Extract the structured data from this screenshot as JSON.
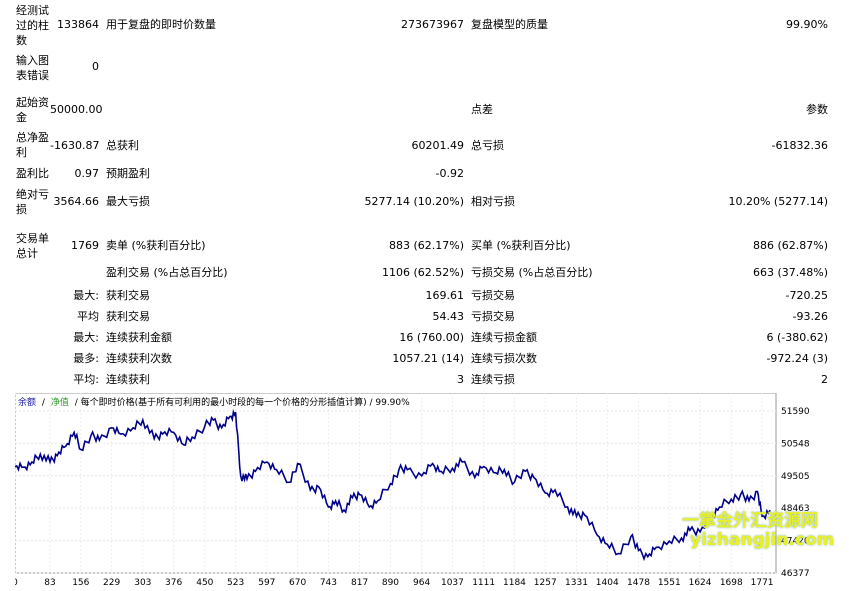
{
  "report": {
    "row1": {
      "label": "经测试过的柱数",
      "value": "133864",
      "label2": "用于复盘的即时价数量",
      "value2": "273673967",
      "label3": "复盘模型的质量",
      "value3": "99.90%"
    },
    "row2": {
      "label": "输入图表错误",
      "value": "0"
    },
    "row3": {
      "label": "起始资金",
      "value": "50000.00",
      "label2": "点差",
      "value2": "参数"
    },
    "row4": {
      "label": "总净盈利",
      "value": "-1630.87",
      "label2": "总获利",
      "value2": "60201.49",
      "label3": "总亏损",
      "value3": "-61832.36"
    },
    "row5": {
      "label": "盈利比",
      "value": "0.97",
      "label2": "预期盈利",
      "value2": "-0.92"
    },
    "row6": {
      "label": "绝对亏损",
      "value": "3564.66",
      "label2": "最大亏损",
      "value2": "5277.14 (10.20%)",
      "label3": "相对亏损",
      "value3": "10.20% (5277.14)"
    },
    "row7": {
      "label": "交易单总计",
      "value": "1769",
      "label2": "卖单 (%获利百分比)",
      "value2": "883 (62.17%)",
      "label3": "买单 (%获利百分比)",
      "value3": "886 (62.87%)"
    },
    "row8": {
      "label2": "盈利交易 (%占总百分比)",
      "value2": "1106 (62.52%)",
      "label3": "亏损交易 (%占总百分比)",
      "value3": "663 (37.48%)"
    },
    "row9": {
      "prefix": "最大:",
      "label2": "获利交易",
      "value2": "169.61",
      "label3": "亏损交易",
      "value3": "-720.25"
    },
    "row10": {
      "prefix": "平均",
      "label2": "获利交易",
      "value2": "54.43",
      "label3": "亏损交易",
      "value3": "-93.26"
    },
    "row11": {
      "prefix": "最大:",
      "label2": "连续获利金额",
      "value2": "16 (760.00)",
      "label3": "连续亏损金额",
      "value3": "6 (-380.62)"
    },
    "row12": {
      "prefix": "最多:",
      "label2": "连续获利次数",
      "value2": "1057.21 (14)",
      "label3": "连续亏损次数",
      "value3": "-972.24 (3)"
    },
    "row13": {
      "prefix": "平均:",
      "label2": "连续获利",
      "value2": "3",
      "label3": "连续亏损",
      "value3": "2"
    }
  },
  "chart_header": {
    "balance": "余额",
    "sep": "/",
    "equity": "净值",
    "text": "/ 每个即时价格(基于所有可利用的最小时段的每一个价格的分形插值计算) / 99.90%"
  },
  "watermark": {
    "line1": "一掌金外汇资源网",
    "line2": "yizhangjin.com"
  },
  "chart_data": {
    "type": "line",
    "x_ticks": [
      "0",
      "83",
      "156",
      "229",
      "303",
      "376",
      "450",
      "523",
      "597",
      "670",
      "743",
      "817",
      "890",
      "964",
      "1037",
      "1111",
      "1184",
      "1257",
      "1331",
      "1404",
      "1478",
      "1551",
      "1624",
      "1698",
      "1771"
    ],
    "y_ticks": [
      "51590",
      "50548",
      "49505",
      "48463",
      "47420",
      "46377"
    ],
    "ylim": [
      46377,
      51590
    ],
    "xlim": [
      0,
      1804
    ],
    "series": [
      {
        "color": "#00008b",
        "x": [
          0,
          20,
          40,
          60,
          83,
          100,
          120,
          140,
          156,
          180,
          200,
          229,
          250,
          280,
          303,
          330,
          350,
          376,
          400,
          420,
          450,
          470,
          490,
          510,
          523,
          535,
          550,
          570,
          597,
          620,
          650,
          670,
          700,
          720,
          743,
          760,
          780,
          800,
          817,
          840,
          860,
          890,
          910,
          930,
          964,
          990,
          1010,
          1037,
          1060,
          1090,
          1111,
          1140,
          1160,
          1184,
          1210,
          1230,
          1257,
          1280,
          1310,
          1331,
          1350,
          1380,
          1404,
          1430,
          1460,
          1478,
          1500,
          1520,
          1551,
          1580,
          1600,
          1624,
          1650,
          1670,
          1698,
          1720,
          1740,
          1760,
          1771,
          1790
        ],
        "y": [
          49800,
          49780,
          49950,
          50200,
          49950,
          50150,
          50450,
          50900,
          50350,
          50800,
          50650,
          51050,
          50850,
          51050,
          51300,
          50700,
          50850,
          50900,
          50500,
          50750,
          51100,
          51300,
          51050,
          51420,
          51550,
          49500,
          49400,
          49650,
          49950,
          49700,
          49300,
          49900,
          49050,
          49150,
          48500,
          48700,
          48400,
          48800,
          48900,
          48500,
          48700,
          49250,
          49700,
          49700,
          49500,
          49900,
          49650,
          49750,
          49950,
          49450,
          49800,
          49600,
          49700,
          49300,
          49650,
          49450,
          48950,
          49050,
          48500,
          48200,
          48250,
          47600,
          47300,
          47000,
          47550,
          47100,
          46900,
          47200,
          47400,
          47500,
          47750,
          47700,
          48150,
          48500,
          48750,
          48900,
          48700,
          49000,
          48200,
          48400
        ]
      }
    ]
  }
}
